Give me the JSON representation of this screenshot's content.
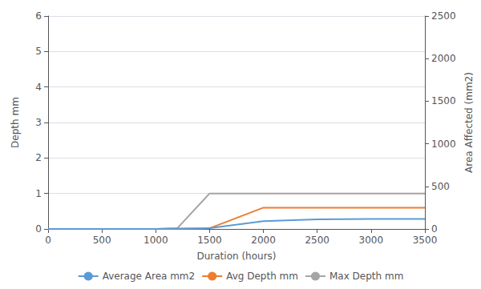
{
  "chart_data": {
    "type": "line",
    "xlabel": "Duration (hours)",
    "ylabel": "Depth mm",
    "y2label": "Area Affected (mm2)",
    "xlim": [
      0,
      3500
    ],
    "xticks": [
      0,
      500,
      1000,
      1500,
      2000,
      2500,
      3000,
      3500
    ],
    "ylim": [
      0,
      6
    ],
    "yticks": [
      0,
      1,
      2,
      3,
      4,
      5,
      6
    ],
    "y2lim": [
      0,
      2500
    ],
    "y2ticks": [
      0,
      500,
      1000,
      1500,
      2000,
      2500
    ],
    "grid": true,
    "legend": "bottom",
    "series": [
      {
        "name": "Average Area mm2",
        "color": "#5B9BD5",
        "x": [
          0,
          1000,
          1500,
          2000,
          2500,
          3000,
          3500
        ],
        "values": [
          0.0,
          0.0,
          0.02,
          0.22,
          0.27,
          0.28,
          0.28
        ]
      },
      {
        "name": "Avg Depth mm",
        "color": "#ED7D31",
        "x": [
          0,
          1000,
          1500,
          2000,
          2500,
          3000,
          3500
        ],
        "values": [
          0.0,
          0.0,
          0.02,
          0.6,
          0.6,
          0.6,
          0.6
        ]
      },
      {
        "name": "Max Depth mm",
        "color": "#A5A5A5",
        "x": [
          0,
          1000,
          1200,
          1500,
          2000,
          2500,
          3000,
          3500
        ],
        "values": [
          0.0,
          0.0,
          0.02,
          1.0,
          1.0,
          1.0,
          1.0,
          1.0
        ]
      }
    ]
  }
}
